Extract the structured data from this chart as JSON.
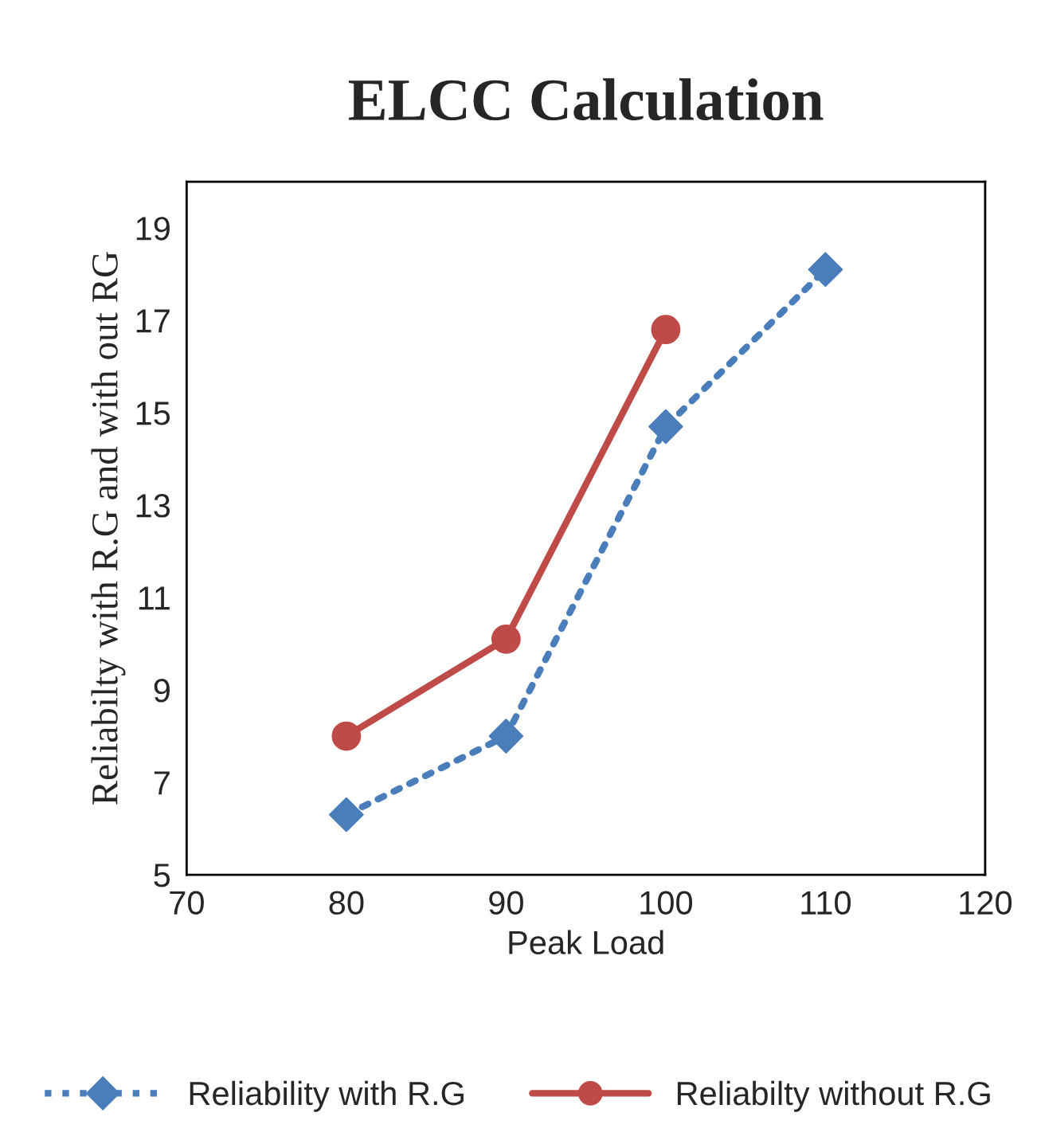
{
  "chart_data": {
    "type": "line",
    "title": "ELCC Calculation",
    "xlabel": "Peak Load",
    "ylabel": "Reliabilty with R.G and with out RG",
    "x": [
      80,
      90,
      100,
      110
    ],
    "series": [
      {
        "name": "Reliability with R.G",
        "color": "#4a7ebb",
        "values": [
          6.3,
          8.0,
          14.7,
          18.1
        ],
        "marker": "diamond",
        "line_style": "dotted"
      },
      {
        "name": "Reliabilty without R.G",
        "color": "#be4b48",
        "values": [
          8.0,
          10.1,
          16.8,
          null
        ],
        "marker": "circle",
        "line_style": "solid"
      }
    ],
    "xlim": [
      70,
      120
    ],
    "xticks": [
      70,
      80,
      90,
      100,
      110,
      120
    ],
    "ylim": [
      5,
      20
    ],
    "yticks": [
      5,
      7,
      9,
      11,
      13,
      15,
      17,
      19
    ],
    "grid": false,
    "legend": "bottom"
  }
}
